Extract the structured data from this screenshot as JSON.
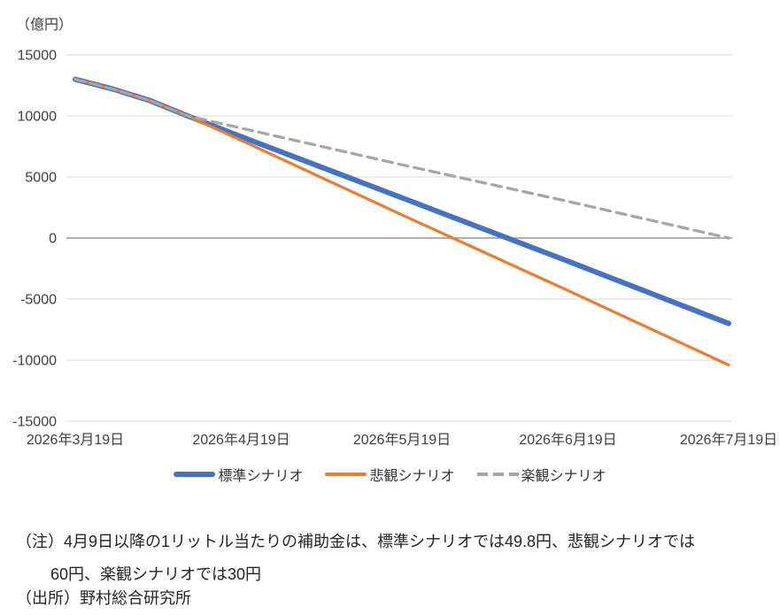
{
  "chart_data": {
    "type": "line",
    "title": "",
    "unit_label": "（億円）",
    "xlabel": "",
    "ylabel": "（億円）",
    "ylim": [
      -15000,
      15000
    ],
    "y_ticks": [
      15000,
      10000,
      5000,
      0,
      -5000,
      -10000,
      -15000
    ],
    "x_ticks": [
      {
        "label": "2026年3月19日",
        "day": 0
      },
      {
        "label": "2026年4月19日",
        "day": 31
      },
      {
        "label": "2026年5月19日",
        "day": 61
      },
      {
        "label": "2026年6月19日",
        "day": 92
      },
      {
        "label": "2026年7月19日",
        "day": 122
      }
    ],
    "grid": "horizontal-only",
    "legend_position": "bottom",
    "colors": {
      "gridline": "#D9D9D9",
      "zero_axis": "#7F7F7F",
      "tick_text": "#404040"
    },
    "series": [
      {
        "name": "標準シナリオ",
        "color": "#4472C4",
        "width": 6,
        "dash": "",
        "points": [
          {
            "date": "2026年3月19日",
            "day": 0,
            "value": 13000
          },
          {
            "date": "2026年3月26日",
            "day": 7,
            "value": 12200
          },
          {
            "date": "2026年4月2日",
            "day": 14,
            "value": 11250
          },
          {
            "date": "2026年4月9日",
            "day": 21,
            "value": 10000
          },
          {
            "date": "2026年4月19日",
            "day": 31,
            "value": 8300
          },
          {
            "date": "2026年5月19日",
            "day": 61,
            "value": 3300
          },
          {
            "date": "2026年6月19日",
            "day": 92,
            "value": -1900
          },
          {
            "date": "2026年7月19日",
            "day": 122,
            "value": -7000
          }
        ]
      },
      {
        "name": "悲観シナリオ",
        "color": "#ED7D31",
        "width": 3.25,
        "dash": "",
        "points": [
          {
            "date": "2026年3月19日",
            "day": 0,
            "value": 13000
          },
          {
            "date": "2026年3月26日",
            "day": 7,
            "value": 12200
          },
          {
            "date": "2026年4月2日",
            "day": 14,
            "value": 11250
          },
          {
            "date": "2026年4月9日",
            "day": 21,
            "value": 10000
          },
          {
            "date": "2026年4月19日",
            "day": 31,
            "value": 8000
          },
          {
            "date": "2026年5月19日",
            "day": 61,
            "value": 1900
          },
          {
            "date": "2026年6月19日",
            "day": 92,
            "value": -4300
          },
          {
            "date": "2026年7月19日",
            "day": 122,
            "value": -10400
          }
        ]
      },
      {
        "name": "楽観シナリオ",
        "color": "#A6A6A6",
        "width": 3.25,
        "dash": "11 7",
        "points": [
          {
            "date": "2026年3月19日",
            "day": 0,
            "value": 13000
          },
          {
            "date": "2026年3月26日",
            "day": 7,
            "value": 12200
          },
          {
            "date": "2026年4月2日",
            "day": 14,
            "value": 11250
          },
          {
            "date": "2026年4月9日",
            "day": 21,
            "value": 10000
          },
          {
            "date": "2026年4月19日",
            "day": 31,
            "value": 9000
          },
          {
            "date": "2026年5月19日",
            "day": 61,
            "value": 6000
          },
          {
            "date": "2026年6月19日",
            "day": 92,
            "value": 3000
          },
          {
            "date": "2026年7月19日",
            "day": 122,
            "value": 0
          }
        ]
      }
    ]
  },
  "notes": {
    "line1": "（注）4月9日以降の1リットル当たりの補助金は、標準シナリオでは49.8円、悲観シナリオでは",
    "line2": "60円、楽観シナリオでは30円",
    "source": "（出所）野村総合研究所"
  }
}
